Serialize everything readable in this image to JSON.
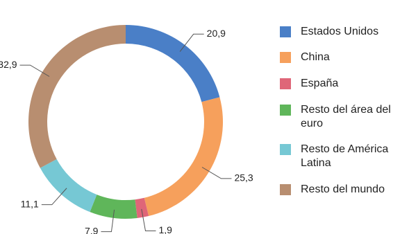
{
  "chart_data": {
    "type": "donut",
    "categories": [
      "Estados Unidos",
      "China",
      "España",
      "Resto del área del euro",
      "Resto de América Latina",
      "Resto del mundo"
    ],
    "values": [
      20.9,
      25.3,
      1.9,
      7.9,
      11.1,
      32.9
    ],
    "value_labels": [
      "20,9",
      "25,3",
      "1,9",
      "7.9",
      "11,1",
      "32,9"
    ],
    "colors": [
      "#4a7fc7",
      "#f6a05c",
      "#df6678",
      "#5fb65a",
      "#76c8d4",
      "#b88e70"
    ],
    "legend": "right"
  }
}
